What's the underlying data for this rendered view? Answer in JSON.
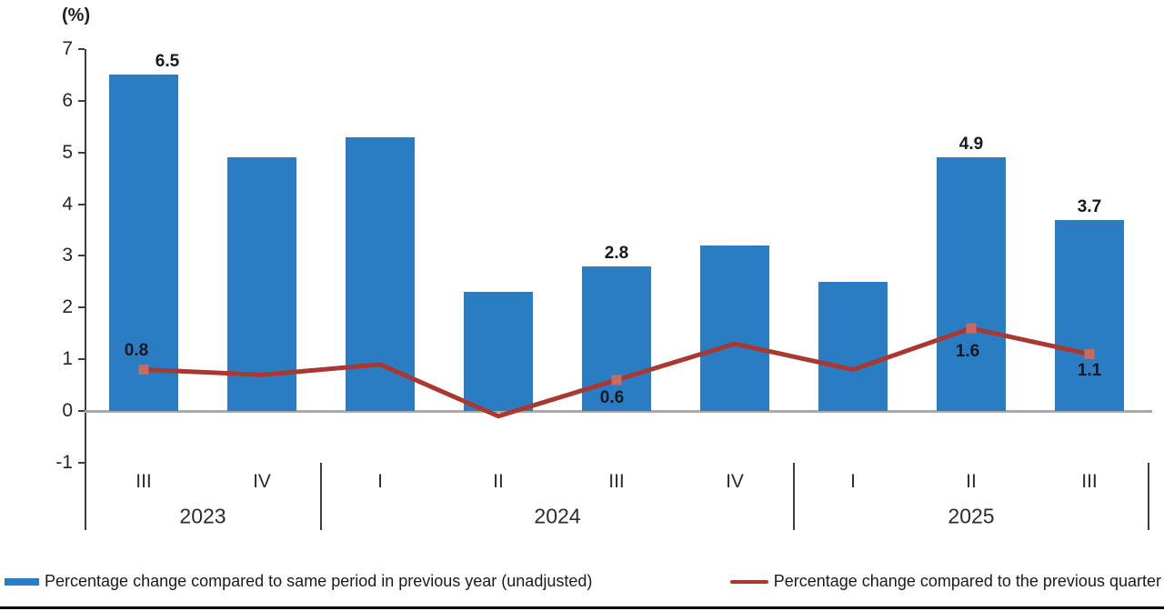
{
  "chart_data": {
    "type": "bar+line combo",
    "title": "",
    "ylabel": "(%)",
    "xlabel": "",
    "ylim": [
      -1,
      7
    ],
    "yticks": [
      7,
      6,
      5,
      4,
      3,
      2,
      1,
      0,
      -1
    ],
    "grid": "off",
    "legend_position": "bottom",
    "quarters": [
      "III",
      "IV",
      "I",
      "II",
      "III",
      "IV",
      "I",
      "II",
      "III"
    ],
    "year_groups": [
      {
        "label": "2023",
        "span": 2
      },
      {
        "label": "2024",
        "span": 4
      },
      {
        "label": "2025",
        "span": 3
      }
    ],
    "series": [
      {
        "name": "Percentage change compared to same period in previous year (unadjusted)",
        "type": "bar",
        "color": "#2B7DC3",
        "values": [
          6.5,
          4.9,
          5.3,
          2.3,
          2.8,
          3.2,
          2.5,
          4.9,
          3.7
        ],
        "labeled_indices": [
          0,
          4,
          7,
          8
        ],
        "shown_labels": [
          "6.5",
          "2.8",
          "4.9",
          "3.7"
        ]
      },
      {
        "name": "Percentage change compared to the previous quarter",
        "type": "line",
        "color": "#A93830",
        "marker_color": "#C86A5F",
        "values": [
          0.8,
          0.7,
          0.9,
          -0.1,
          0.6,
          1.3,
          0.8,
          1.6,
          1.1
        ],
        "labeled_indices": [
          0,
          4,
          7,
          8
        ],
        "shown_labels": [
          "0.8",
          "0.6",
          "1.6",
          "1.1"
        ]
      }
    ]
  }
}
